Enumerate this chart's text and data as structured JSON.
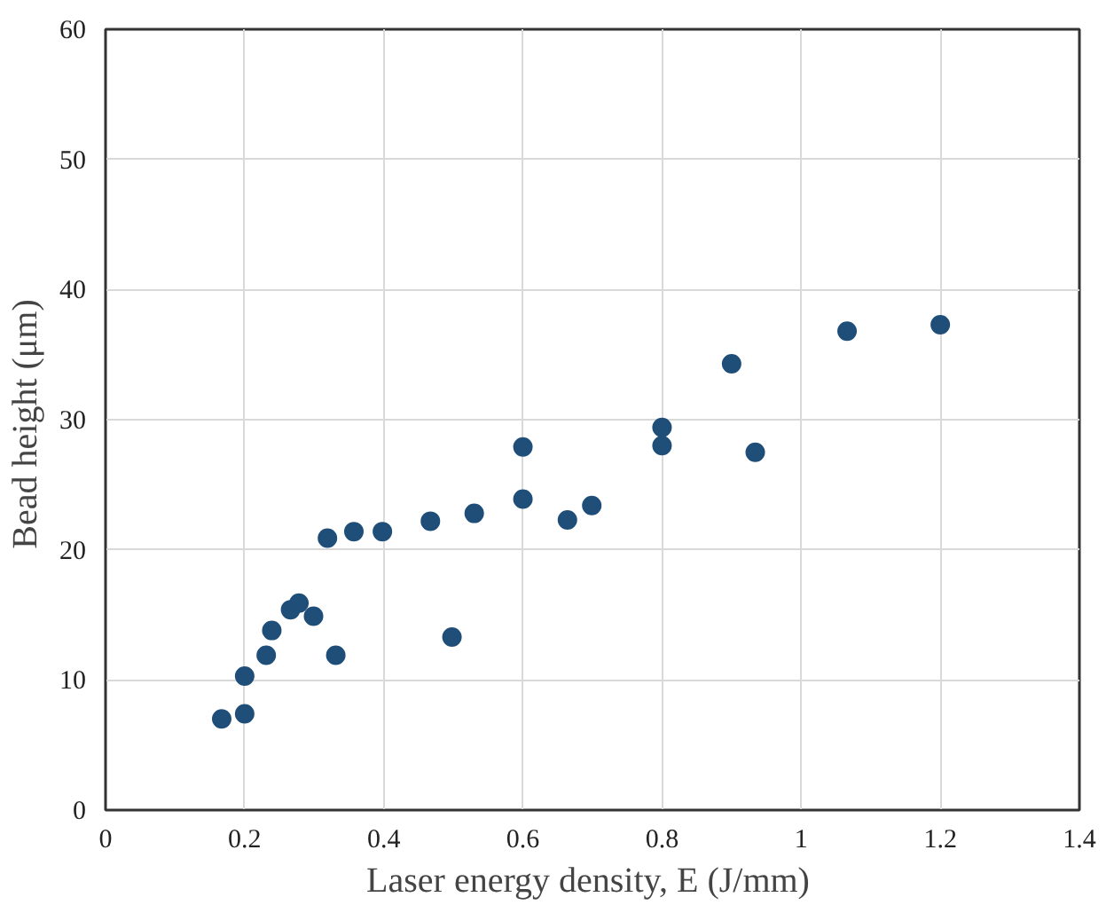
{
  "chart_data": {
    "type": "scatter",
    "xlabel": "Laser energy density,  E (J/mm)",
    "ylabel": "Bead height  (μm)",
    "x": [
      0.167,
      0.2,
      0.2,
      0.231,
      0.239,
      0.266,
      0.278,
      0.299,
      0.331,
      0.319,
      0.357,
      0.398,
      0.467,
      0.498,
      0.53,
      0.6,
      0.6,
      0.664,
      0.699,
      0.8,
      0.8,
      0.9,
      0.934,
      1.066,
      1.2
    ],
    "series": [
      {
        "color": "#1f4e79",
        "values": [
          7.0,
          7.4,
          10.3,
          11.9,
          13.8,
          15.4,
          15.9,
          14.9,
          11.9,
          20.9,
          21.4,
          21.4,
          22.2,
          13.3,
          22.8,
          23.9,
          27.9,
          22.3,
          23.4,
          29.4,
          28.0,
          34.3,
          27.5,
          36.8,
          37.3
        ]
      }
    ],
    "xlim": [
      0,
      1.4
    ],
    "xticks": [
      0,
      0.2,
      0.4,
      0.6,
      0.8,
      1,
      1.2,
      1.4
    ],
    "ylim": [
      0,
      60
    ],
    "yticks": [
      0,
      10,
      20,
      30,
      40,
      50,
      60
    ],
    "grid": true,
    "marker": "circle"
  }
}
